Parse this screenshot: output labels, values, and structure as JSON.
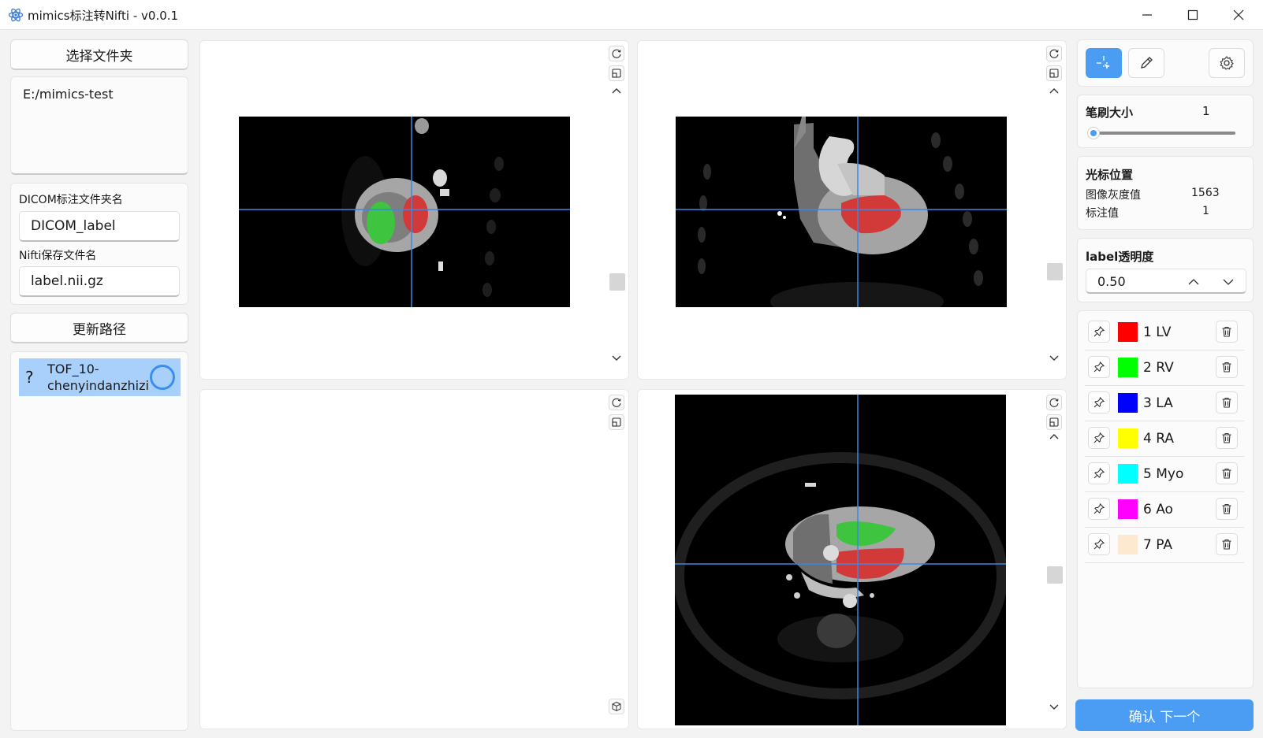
{
  "window": {
    "title": "mimics标注转Nifti - v0.0.1"
  },
  "left": {
    "select_folder_label": "选择文件夹",
    "folder_path": "E:/mimics-test",
    "dicom_label_title": "DICOM标注文件夹名",
    "dicom_label_value": "DICOM_label",
    "nifti_title": "Nifti保存文件名",
    "nifti_value": "label.nii.gz",
    "update_path_label": "更新路径",
    "case_item": {
      "status_icon": "?",
      "name_line1": "TOF_10-",
      "name_line2": "chenyindanzhizi"
    }
  },
  "right": {
    "brush_title": "笔刷大小",
    "brush_value": "1",
    "brush_slider_fraction": 0.0,
    "cursor_title": "光标位置",
    "gray_label": "图像灰度值",
    "gray_value": "1563",
    "label_value_label": "标注值",
    "label_value": "1",
    "opacity_title": "label透明度",
    "opacity_value": "0.50",
    "labels": [
      {
        "name": "1 LV",
        "color": "#ff0000"
      },
      {
        "name": "2 RV",
        "color": "#00ff00"
      },
      {
        "name": "3 LA",
        "color": "#0000ff"
      },
      {
        "name": "4 RA",
        "color": "#ffff00"
      },
      {
        "name": "5 Myo",
        "color": "#00ffff"
      },
      {
        "name": "6 Ao",
        "color": "#ff00ff"
      },
      {
        "name": "7 PA",
        "color": "#fde9d0"
      }
    ],
    "confirm_label": "确认 下一个"
  },
  "colors": {
    "accent": "#4a9df3",
    "crosshair": "#3a87e6",
    "lv": "#d23a3a",
    "rv": "#3ec43e"
  },
  "icons": {
    "select_tool": "crosshair-cursor-icon",
    "pen_tool": "pencil-icon",
    "settings": "gear-icon",
    "reset_view": "refresh-icon",
    "fit_view": "fit-frame-icon",
    "view_3d": "cube-3d-icon",
    "pin": "pin-icon",
    "delete": "trash-icon"
  }
}
